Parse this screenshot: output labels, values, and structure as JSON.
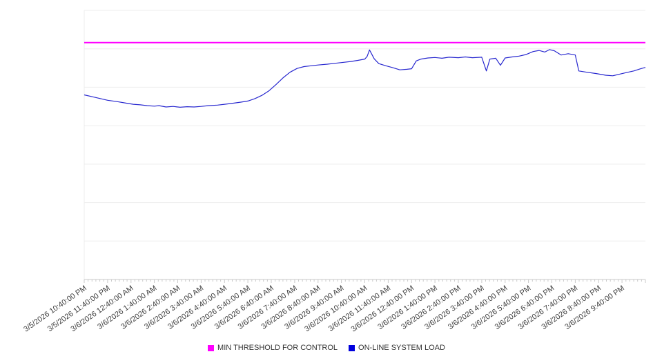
{
  "legend": {
    "items": [
      {
        "label": "MIN THRESHOLD FOR CONTROL",
        "color": "#ff00ff"
      },
      {
        "label": "ON-LINE SYSTEM LOAD",
        "color": "#0000dd"
      }
    ]
  },
  "colors": {
    "background": "#ffffff",
    "grid": "#ededed",
    "axis": "#c9c9c9",
    "label": "#3c3c3c",
    "threshold": "#ff00ff",
    "load": "#2727cf"
  },
  "chart_data": {
    "type": "line",
    "title": "",
    "xlabel": "",
    "ylabel": "",
    "ylim": [
      0,
      100
    ],
    "y_tick_labels": [],
    "y_gridline_divisions": 7,
    "grid": true,
    "legend_position": "bottom-center",
    "x_span_hours": 24,
    "x_minor_ticks_per_hour": 6,
    "x_tick_labels": [
      "3/5/2026 10:40:00 PM",
      "3/5/2026 11:40:00 PM",
      "3/6/2026 12:40:00 AM",
      "3/6/2026 1:40:00 AM",
      "3/6/2026 2:40:00 AM",
      "3/6/2026 3:40:00 AM",
      "3/6/2026 4:40:00 AM",
      "3/6/2026 5:40:00 AM",
      "3/6/2026 6:40:00 AM",
      "3/6/2026 7:40:00 AM",
      "3/6/2026 8:40:00 AM",
      "3/6/2026 9:40:00 AM",
      "3/6/2026 10:40:00 AM",
      "3/6/2026 11:40:00 AM",
      "3/6/2026 12:40:00 PM",
      "3/6/2026 1:40:00 PM",
      "3/6/2026 2:40:00 PM",
      "3/6/2026 3:40:00 PM",
      "3/6/2026 4:40:00 PM",
      "3/6/2026 5:40:00 PM",
      "3/6/2026 6:40:00 PM",
      "3/6/2026 7:40:00 PM",
      "3/6/2026 8:40:00 PM",
      "3/6/2026 9:40:00 PM"
    ],
    "series": [
      {
        "name": "MIN THRESHOLD FOR CONTROL",
        "style": "constant-horizontal-line",
        "color": "#ff00ff",
        "constant_value": 88
      },
      {
        "name": "ON-LINE SYSTEM LOAD",
        "style": "line",
        "color": "#2727cf",
        "points": [
          [
            0,
            68.6
          ],
          [
            0.3,
            68.0
          ],
          [
            0.7,
            67.2
          ],
          [
            1.0,
            66.6
          ],
          [
            1.4,
            66.1
          ],
          [
            1.8,
            65.5
          ],
          [
            2.1,
            65.1
          ],
          [
            2.4,
            64.9
          ],
          [
            2.7,
            64.6
          ],
          [
            3.0,
            64.4
          ],
          [
            3.2,
            64.6
          ],
          [
            3.5,
            64.1
          ],
          [
            3.8,
            64.3
          ],
          [
            4.1,
            64.0
          ],
          [
            4.4,
            64.2
          ],
          [
            4.7,
            64.1
          ],
          [
            5.0,
            64.3
          ],
          [
            5.3,
            64.6
          ],
          [
            5.7,
            64.8
          ],
          [
            6.0,
            65.1
          ],
          [
            6.3,
            65.4
          ],
          [
            6.7,
            65.9
          ],
          [
            7.0,
            66.3
          ],
          [
            7.3,
            67.2
          ],
          [
            7.6,
            68.4
          ],
          [
            7.9,
            70.1
          ],
          [
            8.2,
            72.4
          ],
          [
            8.5,
            74.9
          ],
          [
            8.8,
            77.0
          ],
          [
            9.1,
            78.4
          ],
          [
            9.4,
            79.1
          ],
          [
            9.7,
            79.4
          ],
          [
            10.0,
            79.7
          ],
          [
            10.4,
            80.0
          ],
          [
            10.7,
            80.3
          ],
          [
            11.0,
            80.6
          ],
          [
            11.4,
            81.0
          ],
          [
            11.7,
            81.4
          ],
          [
            12.0,
            81.9
          ],
          [
            12.1,
            82.9
          ],
          [
            12.2,
            85.3
          ],
          [
            12.4,
            82.0
          ],
          [
            12.6,
            80.2
          ],
          [
            12.9,
            79.4
          ],
          [
            13.2,
            78.7
          ],
          [
            13.5,
            77.9
          ],
          [
            13.8,
            78.1
          ],
          [
            14.0,
            78.3
          ],
          [
            14.2,
            81.2
          ],
          [
            14.4,
            81.9
          ],
          [
            14.7,
            82.3
          ],
          [
            15.0,
            82.5
          ],
          [
            15.3,
            82.2
          ],
          [
            15.6,
            82.6
          ],
          [
            16.0,
            82.4
          ],
          [
            16.3,
            82.7
          ],
          [
            16.6,
            82.4
          ],
          [
            17.0,
            82.6
          ],
          [
            17.2,
            77.5
          ],
          [
            17.35,
            81.9
          ],
          [
            17.6,
            82.2
          ],
          [
            17.8,
            79.6
          ],
          [
            18.0,
            82.3
          ],
          [
            18.3,
            82.7
          ],
          [
            18.6,
            83.0
          ],
          [
            18.9,
            83.6
          ],
          [
            19.2,
            84.7
          ],
          [
            19.45,
            85.1
          ],
          [
            19.7,
            84.5
          ],
          [
            19.9,
            85.4
          ],
          [
            20.1,
            85.0
          ],
          [
            20.4,
            83.4
          ],
          [
            20.7,
            83.9
          ],
          [
            21.0,
            83.4
          ],
          [
            21.15,
            77.5
          ],
          [
            21.5,
            77.0
          ],
          [
            21.9,
            76.5
          ],
          [
            22.3,
            75.9
          ],
          [
            22.6,
            75.7
          ],
          [
            22.9,
            76.3
          ],
          [
            23.2,
            76.9
          ],
          [
            23.5,
            77.5
          ],
          [
            23.8,
            78.3
          ],
          [
            24.0,
            78.8
          ]
        ]
      }
    ]
  }
}
